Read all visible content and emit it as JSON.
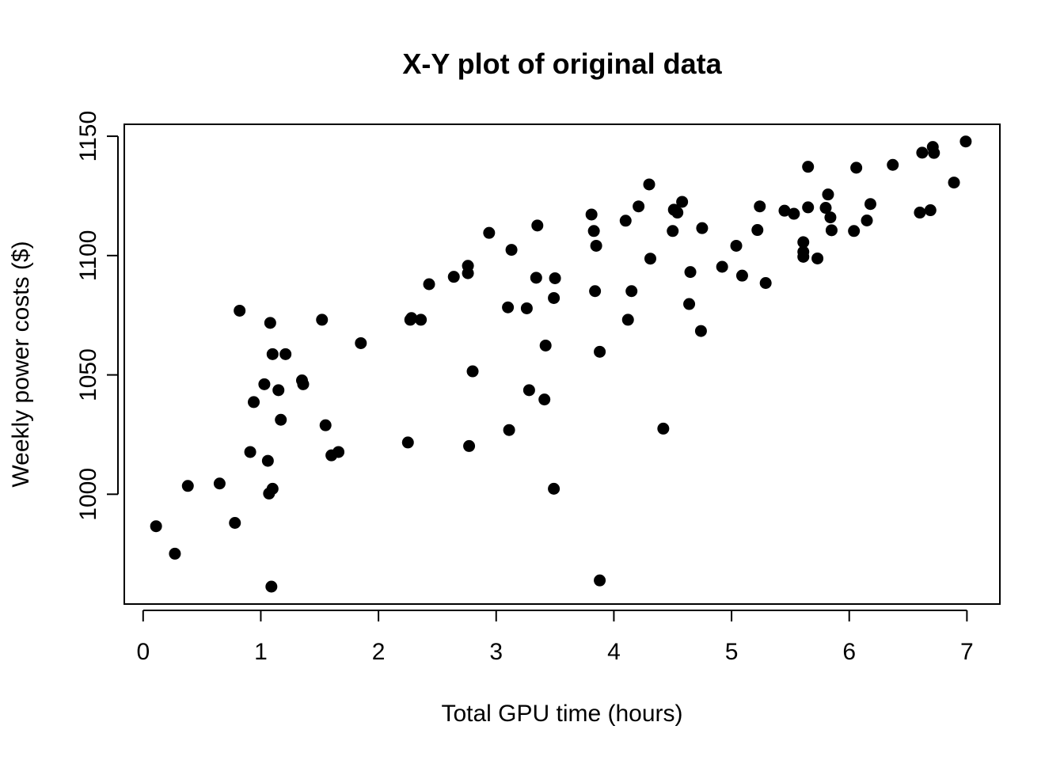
{
  "chart_data": {
    "type": "scatter",
    "title": "X-Y plot of original data",
    "xlabel": "Total GPU time (hours)",
    "ylabel": "Weekly power costs ($)",
    "xlim": [
      -0.16,
      7.28
    ],
    "ylim": [
      954,
      1155
    ],
    "xticks": [
      0,
      1,
      2,
      3,
      4,
      5,
      6,
      7
    ],
    "yticks": [
      1000,
      1050,
      1100,
      1150
    ],
    "grid": false,
    "legend": "none",
    "marker_color": "#000000",
    "points": [
      [
        0.11,
        986.6
      ],
      [
        0.27,
        975.1
      ],
      [
        0.38,
        1003.5
      ],
      [
        0.65,
        1004.5
      ],
      [
        0.78,
        988.0
      ],
      [
        0.82,
        1076.9
      ],
      [
        0.91,
        1017.7
      ],
      [
        0.94,
        1038.6
      ],
      [
        1.03,
        1046.1
      ],
      [
        1.06,
        1014.0
      ],
      [
        1.07,
        1000.3
      ],
      [
        1.08,
        1071.8
      ],
      [
        1.09,
        961.3
      ],
      [
        1.1,
        1002.3
      ],
      [
        1.1,
        1058.7
      ],
      [
        1.15,
        1043.6
      ],
      [
        1.17,
        1031.2
      ],
      [
        1.21,
        1058.7
      ],
      [
        1.35,
        1047.7
      ],
      [
        1.36,
        1046.1
      ],
      [
        1.52,
        1073.1
      ],
      [
        1.55,
        1028.9
      ],
      [
        1.6,
        1016.3
      ],
      [
        1.66,
        1017.7
      ],
      [
        1.85,
        1063.3
      ],
      [
        2.25,
        1021.7
      ],
      [
        2.27,
        1073.1
      ],
      [
        2.28,
        1073.8
      ],
      [
        2.36,
        1073.1
      ],
      [
        2.43,
        1088.0
      ],
      [
        2.64,
        1091.1
      ],
      [
        2.76,
        1092.6
      ],
      [
        2.76,
        1095.7
      ],
      [
        2.77,
        1020.2
      ],
      [
        2.8,
        1051.5
      ],
      [
        2.94,
        1109.5
      ],
      [
        3.1,
        1078.3
      ],
      [
        3.11,
        1026.9
      ],
      [
        3.13,
        1102.4
      ],
      [
        3.26,
        1077.9
      ],
      [
        3.28,
        1043.6
      ],
      [
        3.34,
        1090.7
      ],
      [
        3.35,
        1112.6
      ],
      [
        3.41,
        1039.7
      ],
      [
        3.42,
        1062.3
      ],
      [
        3.49,
        1082.2
      ],
      [
        3.49,
        1002.3
      ],
      [
        3.5,
        1090.5
      ],
      [
        3.81,
        1117.2
      ],
      [
        3.83,
        1110.3
      ],
      [
        3.84,
        1085.1
      ],
      [
        3.85,
        1104.1
      ],
      [
        3.88,
        1059.7
      ],
      [
        3.88,
        963.9
      ],
      [
        4.1,
        1114.6
      ],
      [
        4.12,
        1073.1
      ],
      [
        4.15,
        1085.1
      ],
      [
        4.21,
        1120.6
      ],
      [
        4.3,
        1129.8
      ],
      [
        4.31,
        1098.7
      ],
      [
        4.42,
        1027.5
      ],
      [
        4.5,
        1110.3
      ],
      [
        4.51,
        1119.2
      ],
      [
        4.54,
        1118.0
      ],
      [
        4.58,
        1122.5
      ],
      [
        4.64,
        1079.7
      ],
      [
        4.65,
        1093.1
      ],
      [
        4.74,
        1068.4
      ],
      [
        4.75,
        1111.5
      ],
      [
        4.92,
        1095.3
      ],
      [
        5.04,
        1104.1
      ],
      [
        5.09,
        1091.6
      ],
      [
        5.22,
        1110.7
      ],
      [
        5.24,
        1120.6
      ],
      [
        5.29,
        1088.5
      ],
      [
        5.45,
        1118.8
      ],
      [
        5.53,
        1117.5
      ],
      [
        5.61,
        1105.6
      ],
      [
        5.61,
        1099.5
      ],
      [
        5.61,
        1101.6
      ],
      [
        5.65,
        1137.2
      ],
      [
        5.65,
        1120.2
      ],
      [
        5.73,
        1098.8
      ],
      [
        5.8,
        1120.0
      ],
      [
        5.82,
        1125.6
      ],
      [
        5.84,
        1116.0
      ],
      [
        5.85,
        1110.6
      ],
      [
        6.04,
        1110.3
      ],
      [
        6.06,
        1136.8
      ],
      [
        6.15,
        1114.7
      ],
      [
        6.18,
        1121.6
      ],
      [
        6.37,
        1138.0
      ],
      [
        6.6,
        1118.0
      ],
      [
        6.62,
        1143.1
      ],
      [
        6.69,
        1119.0
      ],
      [
        6.71,
        1145.5
      ],
      [
        6.72,
        1143.0
      ],
      [
        6.89,
        1130.6
      ],
      [
        6.99,
        1147.8
      ]
    ]
  }
}
